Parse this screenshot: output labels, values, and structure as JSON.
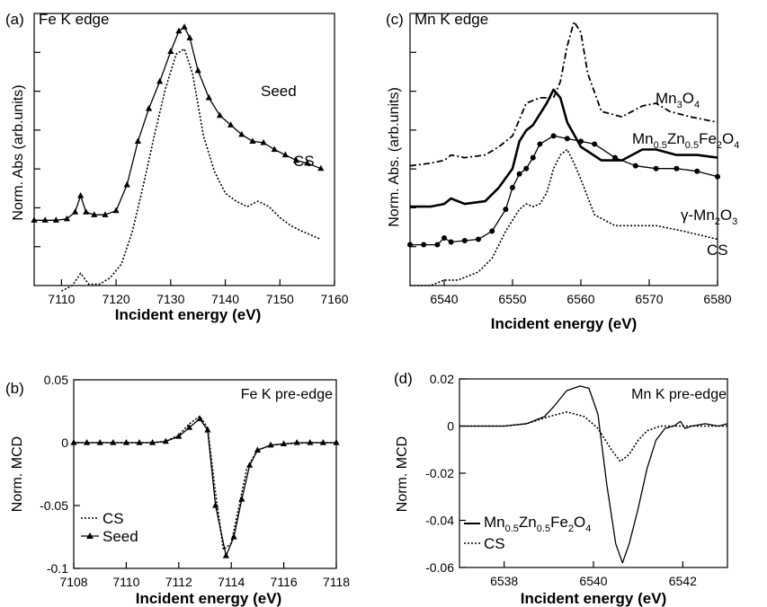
{
  "chart_data": [
    {
      "type": "line",
      "panel": "(a)",
      "title": "Fe K edge",
      "xlabel": "Incident energy (eV)",
      "ylabel": "Norm. Abs (arb.units)",
      "xlim": [
        7105,
        7160
      ],
      "ylim": [
        0,
        1
      ],
      "xticks": [
        "7110",
        "7120",
        "7130",
        "7140",
        "7150",
        "7160"
      ],
      "yticks_labeled": false,
      "series": [
        {
          "name": "Seed",
          "marker": "triangle",
          "style": "solid",
          "x": [
            7105,
            7107,
            7109,
            7111,
            7112.5,
            7113.5,
            7114.5,
            7116,
            7118,
            7120,
            7122,
            7124,
            7126,
            7128,
            7130,
            7131.5,
            7132.5,
            7133.5,
            7135,
            7137,
            7139,
            7141,
            7143,
            7145,
            7147,
            7149,
            7151,
            7153,
            7155,
            7157.5
          ],
          "y": [
            0.24,
            0.24,
            0.24,
            0.245,
            0.27,
            0.33,
            0.27,
            0.26,
            0.26,
            0.275,
            0.37,
            0.53,
            0.65,
            0.75,
            0.86,
            0.935,
            0.95,
            0.91,
            0.79,
            0.69,
            0.625,
            0.59,
            0.555,
            0.53,
            0.525,
            0.5,
            0.48,
            0.46,
            0.45,
            0.43
          ]
        },
        {
          "name": "CS",
          "marker": "none",
          "style": "dotted",
          "x": [
            7110,
            7112,
            7113.5,
            7115,
            7117,
            7119,
            7121,
            7123,
            7125,
            7127,
            7129,
            7131,
            7132.5,
            7134,
            7136,
            7138,
            7140,
            7142,
            7144,
            7146,
            7148,
            7150,
            7152,
            7154,
            7157.5
          ],
          "y": [
            -0.02,
            0.0,
            0.045,
            0.005,
            0.005,
            0.03,
            0.08,
            0.2,
            0.37,
            0.55,
            0.72,
            0.85,
            0.87,
            0.78,
            0.55,
            0.42,
            0.34,
            0.31,
            0.29,
            0.31,
            0.29,
            0.25,
            0.22,
            0.2,
            0.17
          ]
        }
      ],
      "labels": [
        "Seed",
        "CS"
      ]
    },
    {
      "type": "line",
      "panel": "(b)",
      "title": "Fe K pre-edge",
      "xlabel": "Incident energy (eV)",
      "ylabel": "Norm. MCD",
      "xlim": [
        7108,
        7118
      ],
      "ylim": [
        -0.1,
        0.05
      ],
      "xticks": [
        "7108",
        "7110",
        "7112",
        "7114",
        "7116",
        "7118"
      ],
      "yticks": [
        "-0.1",
        "-0.05",
        "0",
        "0.05"
      ],
      "legend": "bottom-left",
      "series": [
        {
          "name": "CS",
          "marker": "none",
          "style": "dotted",
          "x": [
            7108,
            7109,
            7110,
            7111,
            7111.5,
            7112,
            7112.4,
            7112.8,
            7113.1,
            7113.4,
            7113.7,
            7114,
            7114.3,
            7114.6,
            7115,
            7115.5,
            7116,
            7117,
            7118
          ],
          "y": [
            0,
            0,
            0,
            0,
            0.001,
            0.006,
            0.015,
            0.021,
            0.012,
            -0.04,
            -0.085,
            -0.08,
            -0.05,
            -0.02,
            -0.006,
            -0.002,
            -0.001,
            0,
            0
          ]
        },
        {
          "name": "Seed",
          "marker": "triangle",
          "style": "solid",
          "x": [
            7108,
            7108.5,
            7109,
            7109.5,
            7110,
            7110.5,
            7111,
            7111.5,
            7112,
            7112.4,
            7112.8,
            7113.1,
            7113.4,
            7113.8,
            7114.1,
            7114.4,
            7114.7,
            7115,
            7115.5,
            7116,
            7116.5,
            7117,
            7117.5,
            7118
          ],
          "y": [
            0,
            0,
            0,
            0,
            0,
            0,
            0,
            0.001,
            0.005,
            0.012,
            0.019,
            0.01,
            -0.05,
            -0.09,
            -0.075,
            -0.045,
            -0.018,
            -0.006,
            -0.002,
            -0.001,
            0,
            0,
            0,
            0
          ]
        }
      ]
    },
    {
      "type": "line",
      "panel": "(c)",
      "title": "Mn K edge",
      "xlabel": "Incident energy (eV)",
      "ylabel": "Norm. Abs. (arb.units)",
      "xlim": [
        6535,
        6580
      ],
      "ylim": [
        0,
        1
      ],
      "xticks": [
        "6540",
        "6550",
        "6560",
        "6570",
        "6580"
      ],
      "yticks_labeled": false,
      "series": [
        {
          "name": "Mn3O4",
          "marker": "none",
          "style": "dash-dot",
          "x": [
            6535,
            6538,
            6540,
            6541,
            6543,
            6546,
            6548,
            6550,
            6552,
            6554,
            6556,
            6557,
            6558,
            6559,
            6560,
            6561,
            6563,
            6566,
            6569,
            6571,
            6573,
            6576,
            6580
          ],
          "y": [
            0.44,
            0.45,
            0.46,
            0.48,
            0.47,
            0.48,
            0.51,
            0.55,
            0.67,
            0.69,
            0.69,
            0.75,
            0.88,
            0.97,
            0.93,
            0.78,
            0.64,
            0.62,
            0.66,
            0.67,
            0.64,
            0.62,
            0.6
          ]
        },
        {
          "name": "Mn0.5Zn0.5Fe2O4",
          "marker": "none",
          "style": "bold",
          "x": [
            6535,
            6538,
            6540,
            6541,
            6543,
            6546,
            6548,
            6550,
            6551,
            6552,
            6553,
            6554,
            6555,
            6556,
            6557,
            6558,
            6560,
            6563,
            6566,
            6569,
            6571,
            6574,
            6577,
            6580
          ],
          "y": [
            0.29,
            0.29,
            0.3,
            0.32,
            0.3,
            0.31,
            0.36,
            0.43,
            0.53,
            0.57,
            0.59,
            0.63,
            0.67,
            0.72,
            0.69,
            0.6,
            0.51,
            0.46,
            0.46,
            0.5,
            0.5,
            0.48,
            0.48,
            0.47
          ]
        },
        {
          "name": "γ-Mn2O3",
          "marker": "circle",
          "style": "solid",
          "x": [
            6535,
            6537,
            6539,
            6540,
            6541,
            6543,
            6545,
            6547,
            6549,
            6550,
            6551,
            6552,
            6553,
            6554,
            6556,
            6558,
            6560,
            6562,
            6565,
            6568,
            6571,
            6574,
            6577,
            6580
          ],
          "y": [
            0.15,
            0.15,
            0.15,
            0.175,
            0.16,
            0.165,
            0.17,
            0.2,
            0.28,
            0.36,
            0.41,
            0.43,
            0.47,
            0.52,
            0.55,
            0.54,
            0.53,
            0.52,
            0.47,
            0.44,
            0.43,
            0.43,
            0.42,
            0.4
          ]
        },
        {
          "name": "CS",
          "marker": "none",
          "style": "dotted",
          "x": [
            6535,
            6538,
            6540,
            6542,
            6545,
            6547,
            6549,
            6551,
            6552,
            6553,
            6554,
            6555,
            6556,
            6557,
            6558,
            6559,
            6560,
            6562,
            6565,
            6568,
            6571,
            6575,
            6580
          ],
          "y": [
            0.0,
            0.0,
            0.02,
            0.02,
            0.05,
            0.1,
            0.2,
            0.28,
            0.3,
            0.29,
            0.3,
            0.34,
            0.43,
            0.48,
            0.5,
            0.45,
            0.39,
            0.26,
            0.22,
            0.22,
            0.22,
            0.2,
            0.17
          ]
        }
      ],
      "labels": [
        "Mn3O4",
        "Mn0.5Zn0.5Fe2O4",
        "γ-Mn2O3",
        "CS"
      ]
    },
    {
      "type": "line",
      "panel": "(d)",
      "title": "Mn K pre-edge",
      "xlabel": "Incident energy (eV)",
      "ylabel": "Norm. MCD",
      "xlim": [
        6537,
        6543
      ],
      "ylim": [
        -0.06,
        0.02
      ],
      "xticks": [
        "6538",
        "6540",
        "6542"
      ],
      "yticks": [
        "-0.06",
        "-0.04",
        "-0.02",
        "0",
        "0.02"
      ],
      "legend": "bottom-left",
      "series": [
        {
          "name": "Mn0.5Zn0.5Fe2O4",
          "marker": "none",
          "style": "solid",
          "x": [
            6537,
            6537.5,
            6538,
            6538.5,
            6538.9,
            6539.1,
            6539.4,
            6539.7,
            6539.9,
            6540.1,
            6540.3,
            6540.5,
            6540.65,
            6540.8,
            6541,
            6541.2,
            6541.4,
            6541.6,
            6541.8,
            6541.95,
            6542.05,
            6542.2,
            6542.5,
            6542.8,
            6543
          ],
          "y": [
            0,
            0,
            0,
            0.001,
            0.004,
            0.008,
            0.015,
            0.017,
            0.016,
            0.005,
            -0.025,
            -0.05,
            -0.058,
            -0.05,
            -0.035,
            -0.018,
            -0.006,
            -0.001,
            0,
            0.002,
            -0.001,
            0,
            0.001,
            0,
            0.001
          ]
        },
        {
          "name": "CS",
          "marker": "none",
          "style": "dotted",
          "x": [
            6537,
            6537.5,
            6538,
            6538.5,
            6539,
            6539.4,
            6539.8,
            6540.1,
            6540.4,
            6540.6,
            6540.8,
            6541,
            6541.2,
            6541.5,
            6541.8,
            6542,
            6542.4,
            6542.8,
            6543
          ],
          "y": [
            0,
            0,
            0,
            0.001,
            0.004,
            0.006,
            0.004,
            -0.001,
            -0.01,
            -0.015,
            -0.012,
            -0.006,
            -0.002,
            0,
            0,
            0,
            0,
            0,
            0
          ]
        }
      ]
    }
  ],
  "panel_a": {
    "tag": "(a)",
    "title": "Fe K edge",
    "ylabel": "Norm. Abs (arb.units)",
    "xlabel": "Incident energy (eV)",
    "ann_seed": "Seed",
    "ann_cs": "CS"
  },
  "panel_b": {
    "tag": "(b)",
    "title": "Fe K pre-edge",
    "ylabel": "Norm. MCD",
    "xlabel": "Incident energy (eV)",
    "leg_cs": "CS",
    "leg_seed": "Seed"
  },
  "panel_c": {
    "tag": "(c)",
    "title": "Mn K edge",
    "ylabel": "Norm. Abs. (arb.units)",
    "xlabel": "Incident energy (eV)",
    "ann_cs": "CS"
  },
  "panel_d": {
    "tag": "(d)",
    "title": "Mn K pre-edge",
    "ylabel": "Norm. MCD",
    "xlabel": "Incident energy (eV)",
    "leg_cs": "CS"
  }
}
